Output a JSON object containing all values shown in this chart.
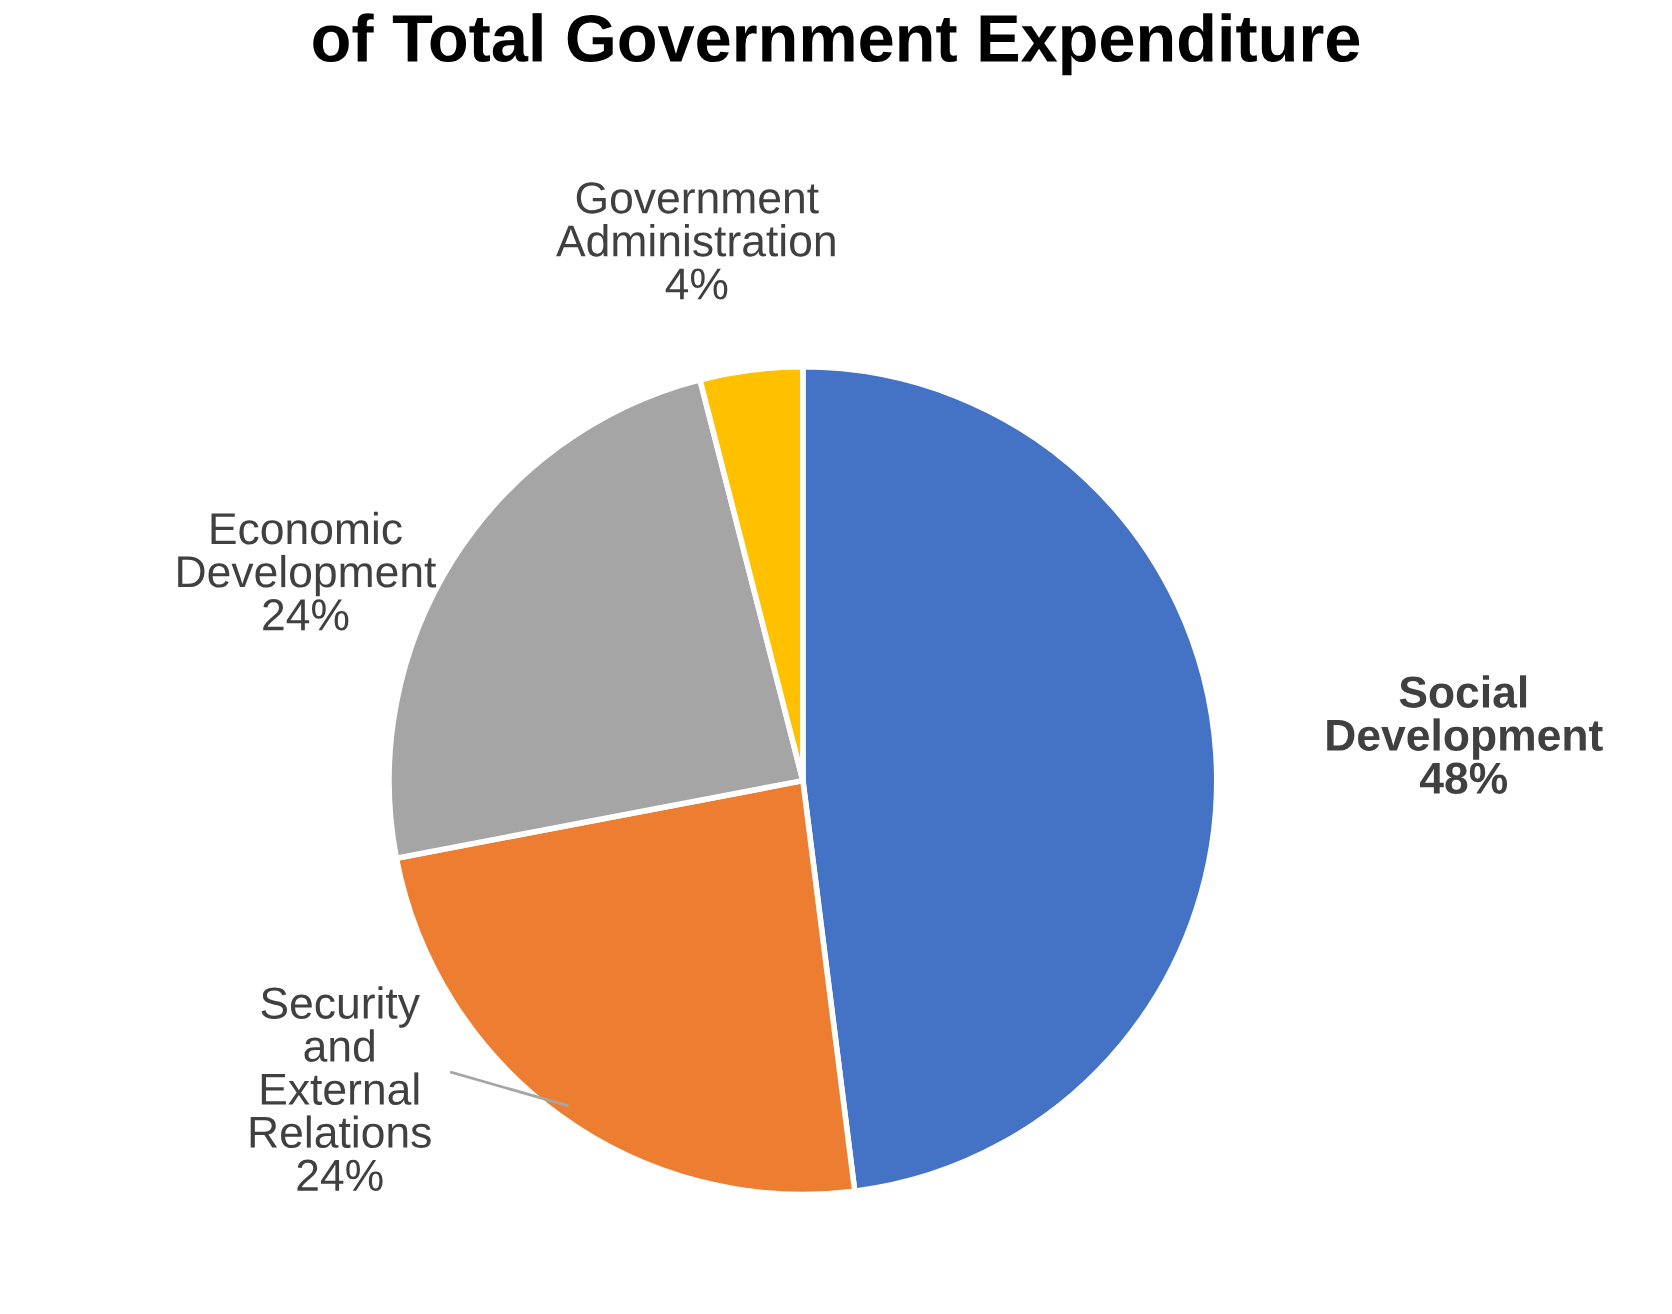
{
  "chart_data": {
    "type": "pie",
    "title": "of Total Government Expenditure",
    "categories": [
      "Social Development",
      "Security and External Relations",
      "Economic Development",
      "Government Administration"
    ],
    "values": [
      48,
      24,
      24,
      4
    ],
    "value_labels": [
      "48%",
      "24%",
      "24%",
      "4%"
    ],
    "colors": [
      "#4472c4",
      "#ed7d31",
      "#a5a5a5",
      "#ffc000"
    ]
  }
}
